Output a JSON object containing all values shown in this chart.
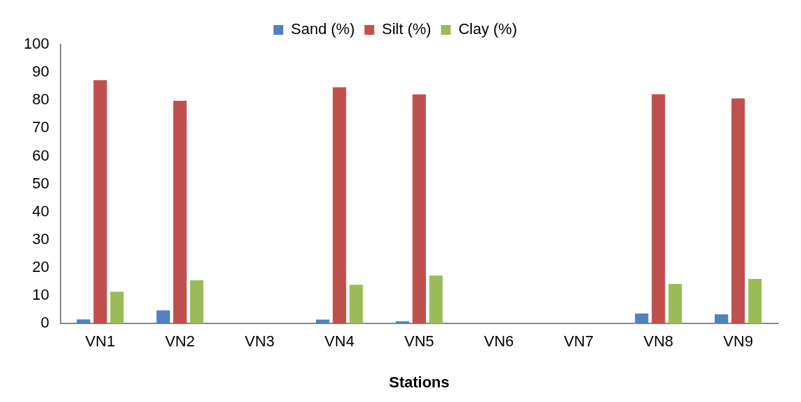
{
  "chart_data": {
    "type": "bar",
    "xlabel": "Stations",
    "categories": [
      "VN1",
      "VN2",
      "VN3",
      "VN4",
      "VN5",
      "VN6",
      "VN7",
      "VN8",
      "VN9"
    ],
    "series": [
      {
        "name": "Sand (%)",
        "color": "#4f81bd",
        "values": [
          1.5,
          4.7,
          null,
          1.4,
          0.8,
          null,
          null,
          3.6,
          3.3
        ]
      },
      {
        "name": "Silt (%)",
        "color": "#c0504d",
        "values": [
          87.2,
          79.8,
          null,
          84.7,
          82.1,
          null,
          null,
          82.2,
          80.7
        ]
      },
      {
        "name": "Clay (%)",
        "color": "#9bbb59",
        "values": [
          11.4,
          15.5,
          null,
          13.9,
          17.2,
          null,
          null,
          14.2,
          16.0
        ]
      }
    ],
    "ylim": [
      0,
      100
    ],
    "yticks": [
      0,
      10,
      20,
      30,
      40,
      50,
      60,
      70,
      80,
      90,
      100
    ],
    "grid": false,
    "legend": "top"
  }
}
